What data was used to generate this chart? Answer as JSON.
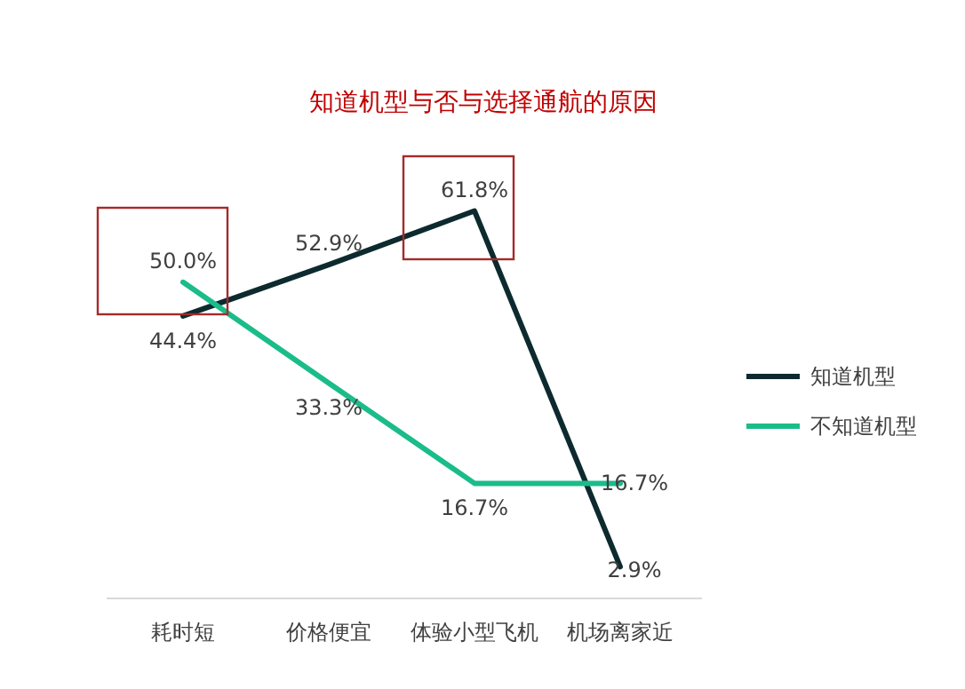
{
  "chart_data": {
    "type": "line",
    "title": "知道机型与否与选择通航的原因",
    "categories": [
      "耗时短",
      "价格便宜",
      "体验小型飞机",
      "机场离家近"
    ],
    "series": [
      {
        "name": "知道机型",
        "color": "#0d2a2f",
        "values": [
          44.4,
          52.9,
          61.8,
          2.9
        ],
        "value_labels": [
          "44.4%",
          "52.9%",
          "61.8%",
          "2.9%"
        ]
      },
      {
        "name": "不知道机型",
        "color": "#1abc8a",
        "values": [
          50.0,
          33.3,
          16.7,
          16.7
        ],
        "value_labels": [
          "50.0%",
          "33.3%",
          "16.7%",
          "16.7%"
        ]
      }
    ],
    "legend": "right",
    "marker": "none",
    "line_style": "solid"
  }
}
